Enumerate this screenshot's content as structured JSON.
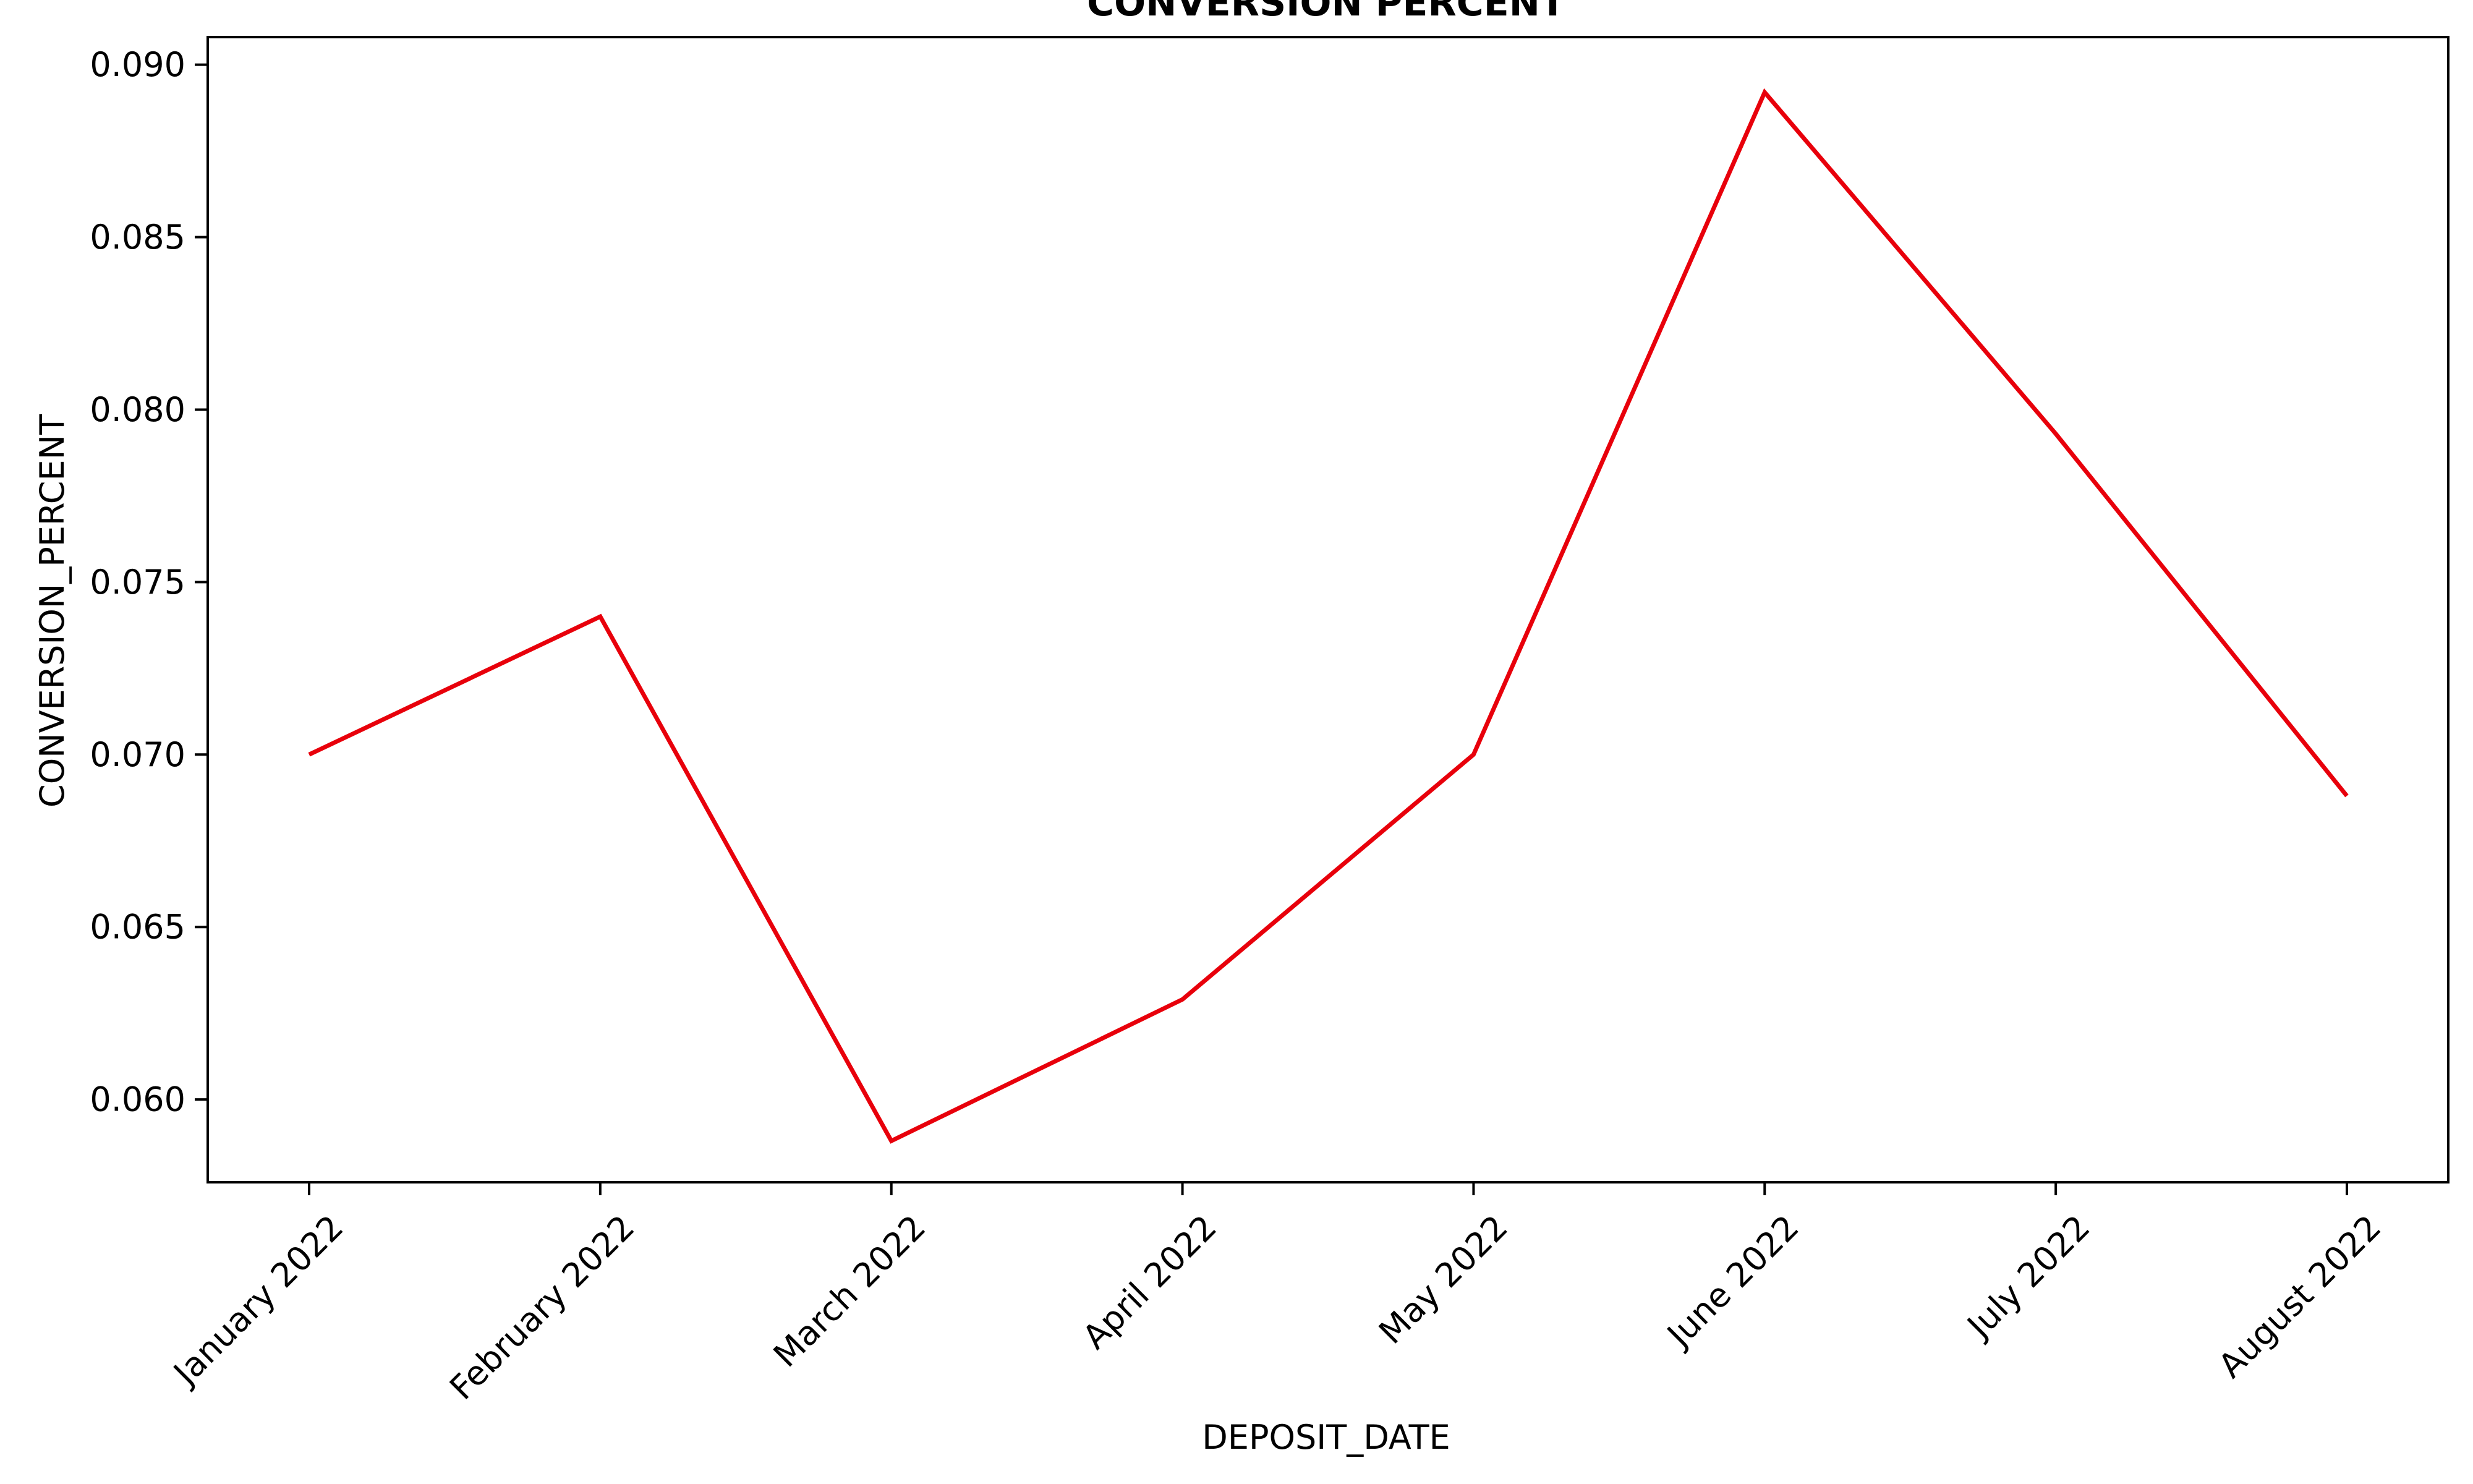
{
  "chart_data": {
    "type": "line",
    "title": "CONVERSION PERCENT",
    "xlabel": "DEPOSIT_DATE",
    "ylabel": "CONVERSION_PERCENT",
    "categories": [
      "January 2022",
      "February 2022",
      "March 2022",
      "April 2022",
      "May 2022",
      "June 2022",
      "July 2022",
      "August 2022"
    ],
    "series": [
      {
        "values": [
          0.07,
          0.074,
          0.0588,
          0.0629,
          0.07,
          0.0892,
          0.0793,
          0.0688
        ],
        "color": "#e8000b"
      }
    ],
    "yticks": [
      "0.060",
      "0.065",
      "0.070",
      "0.075",
      "0.080",
      "0.085",
      "0.090"
    ],
    "ylim": [
      0.0576,
      0.0908
    ],
    "grid": false,
    "legend": "none"
  }
}
